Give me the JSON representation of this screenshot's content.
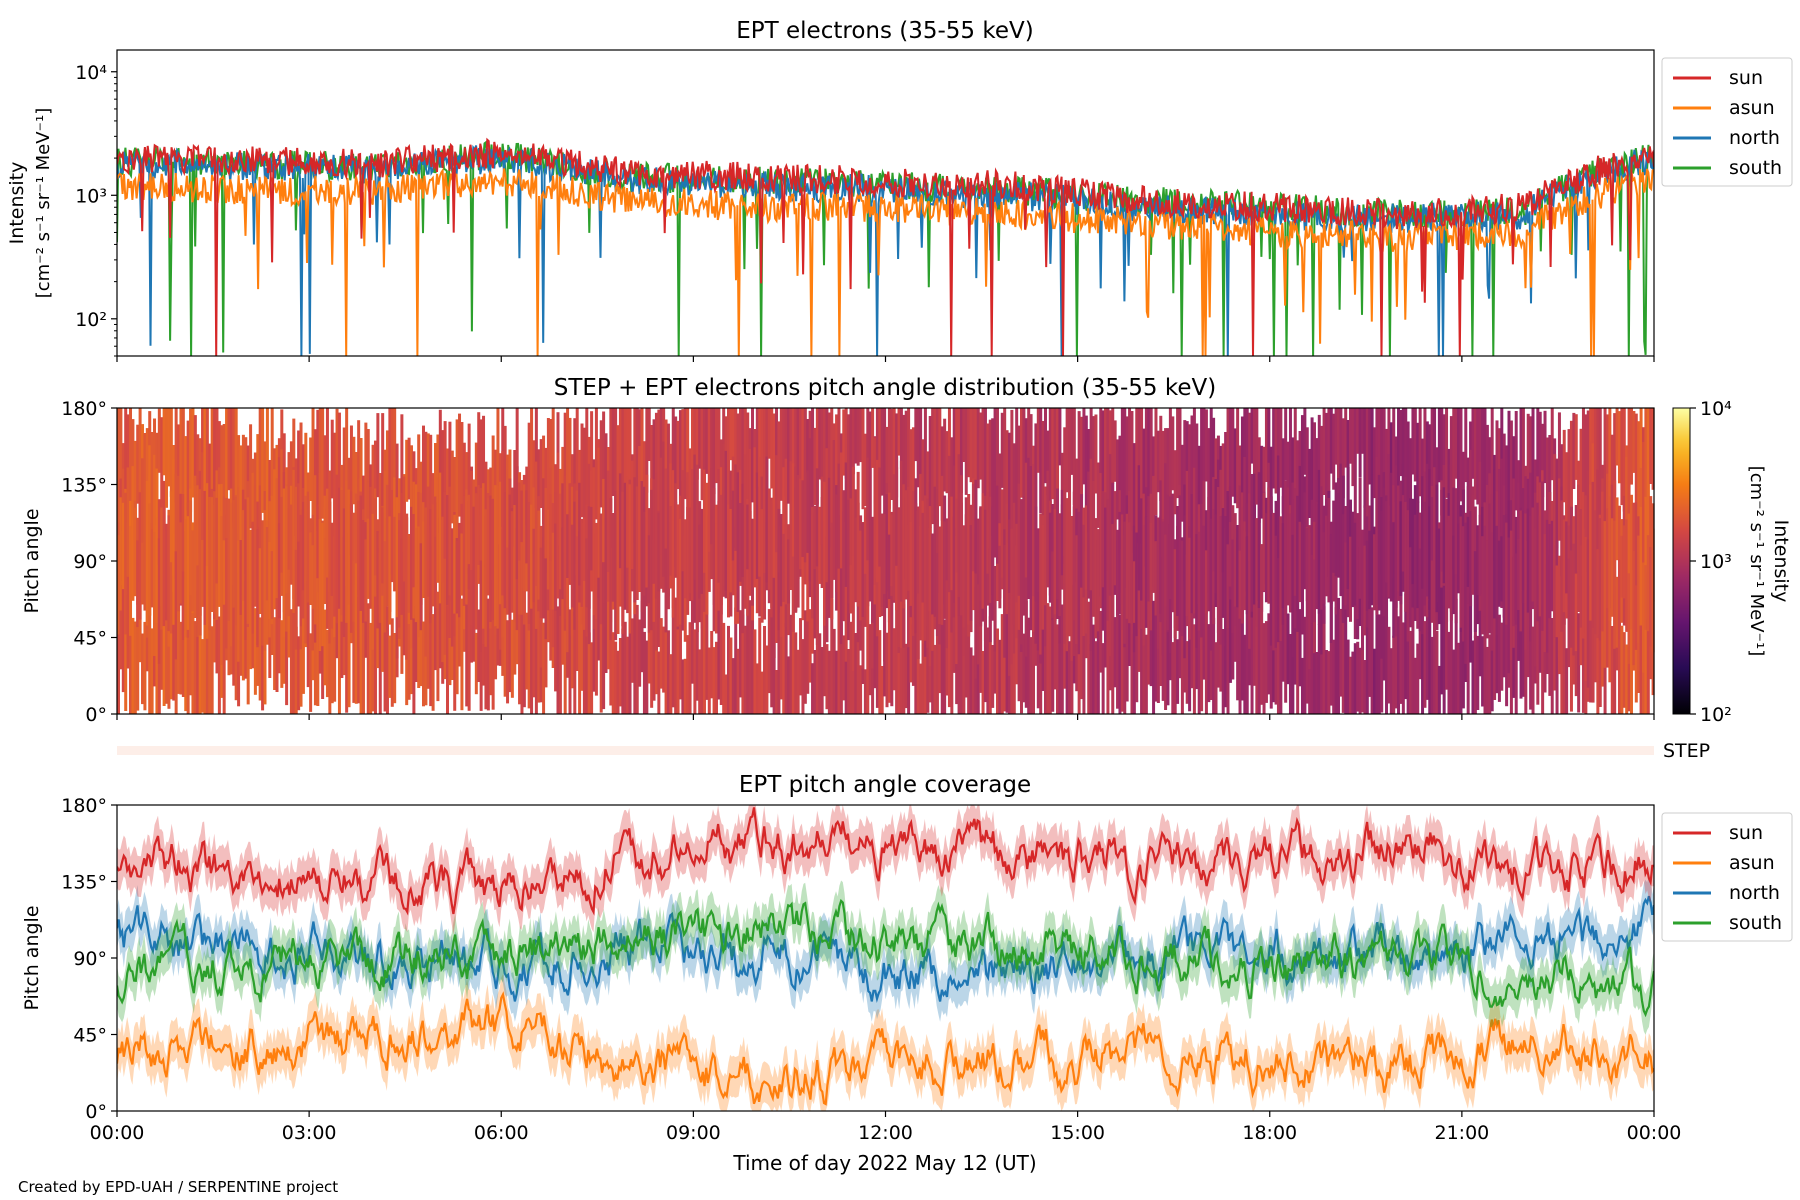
{
  "credit": "Created by EPD-UAH / SERPENTINE project",
  "colors": {
    "sun": "#d62728",
    "asun": "#ff7f0e",
    "north": "#1f77b4",
    "south": "#2ca02c"
  },
  "chart_data": [
    {
      "type": "line",
      "title": "EPT electrons (35-55 keV)",
      "ylabel_line1": "Intensity",
      "ylabel_line2": "[cm⁻² s⁻¹ sr⁻¹ MeV⁻¹]",
      "yscale": "log",
      "ylim": [
        50,
        15000
      ],
      "yticks": [
        {
          "value": 100,
          "label": "10²"
        },
        {
          "value": 1000,
          "label": "10³"
        },
        {
          "value": 10000,
          "label": "10⁴"
        }
      ],
      "x_hours": [
        0,
        2,
        4,
        6,
        8,
        10,
        12,
        14,
        16,
        18,
        20,
        22,
        24
      ],
      "legend": "upper-right-outside",
      "series": [
        {
          "name": "sun",
          "values": [
            2000,
            1900,
            1800,
            2200,
            1500,
            1400,
            1300,
            1200,
            900,
            800,
            700,
            800,
            2200
          ]
        },
        {
          "name": "asun",
          "values": [
            1200,
            1100,
            1100,
            1300,
            900,
            800,
            800,
            700,
            600,
            500,
            450,
            500,
            1400
          ]
        },
        {
          "name": "north",
          "values": [
            1800,
            1700,
            1600,
            2000,
            1300,
            1200,
            1100,
            1000,
            800,
            700,
            650,
            700,
            2000
          ]
        },
        {
          "name": "south",
          "values": [
            1900,
            1800,
            1700,
            2100,
            1400,
            1300,
            1200,
            1100,
            900,
            800,
            700,
            750,
            2100
          ]
        }
      ]
    },
    {
      "type": "heatmap",
      "title": "STEP + EPT electrons pitch angle distribution (35-55 keV)",
      "ylabel": "Pitch angle",
      "ylim": [
        0,
        180
      ],
      "yticks": [
        "0°",
        "45°",
        "90°",
        "135°",
        "180°"
      ],
      "colorbar": {
        "label_line1": "Intensity",
        "label_line2": "[cm⁻² s⁻¹ sr⁻¹ MeV⁻¹]",
        "scale": "log",
        "range": [
          100,
          10000
        ],
        "ticks": [
          "10²",
          "10³",
          "10⁴"
        ]
      },
      "x_hours": [
        0,
        2,
        4,
        6,
        8,
        10,
        12,
        14,
        16,
        18,
        20,
        22,
        24
      ],
      "intensity": [
        2000,
        1900,
        1800,
        1700,
        1400,
        1300,
        1200,
        1100,
        900,
        800,
        700,
        800,
        2000
      ],
      "step_label": "STEP"
    },
    {
      "type": "line",
      "title": "EPT pitch angle coverage",
      "ylabel": "Pitch angle",
      "xlabel": "Time of day 2022 May 12 (UT)",
      "ylim": [
        0,
        180
      ],
      "yticks": [
        "0°",
        "45°",
        "90°",
        "135°",
        "180°"
      ],
      "xticks": [
        "00:00",
        "03:00",
        "06:00",
        "09:00",
        "12:00",
        "15:00",
        "18:00",
        "21:00",
        "00:00"
      ],
      "legend": "upper-right-outside",
      "x_hours": [
        0,
        2,
        4,
        6,
        8,
        10,
        12,
        14,
        16,
        18,
        20,
        22,
        24
      ],
      "series": [
        {
          "name": "sun",
          "values": [
            145,
            140,
            135,
            130,
            150,
            160,
            155,
            150,
            145,
            150,
            155,
            140,
            150
          ]
        },
        {
          "name": "asun",
          "values": [
            35,
            40,
            45,
            50,
            30,
            20,
            25,
            30,
            35,
            30,
            25,
            40,
            30
          ]
        },
        {
          "name": "north",
          "values": [
            100,
            95,
            90,
            85,
            95,
            90,
            85,
            80,
            90,
            95,
            90,
            100,
            105
          ]
        },
        {
          "name": "south",
          "values": [
            80,
            85,
            90,
            95,
            100,
            105,
            100,
            95,
            90,
            85,
            95,
            80,
            75
          ]
        }
      ]
    }
  ]
}
